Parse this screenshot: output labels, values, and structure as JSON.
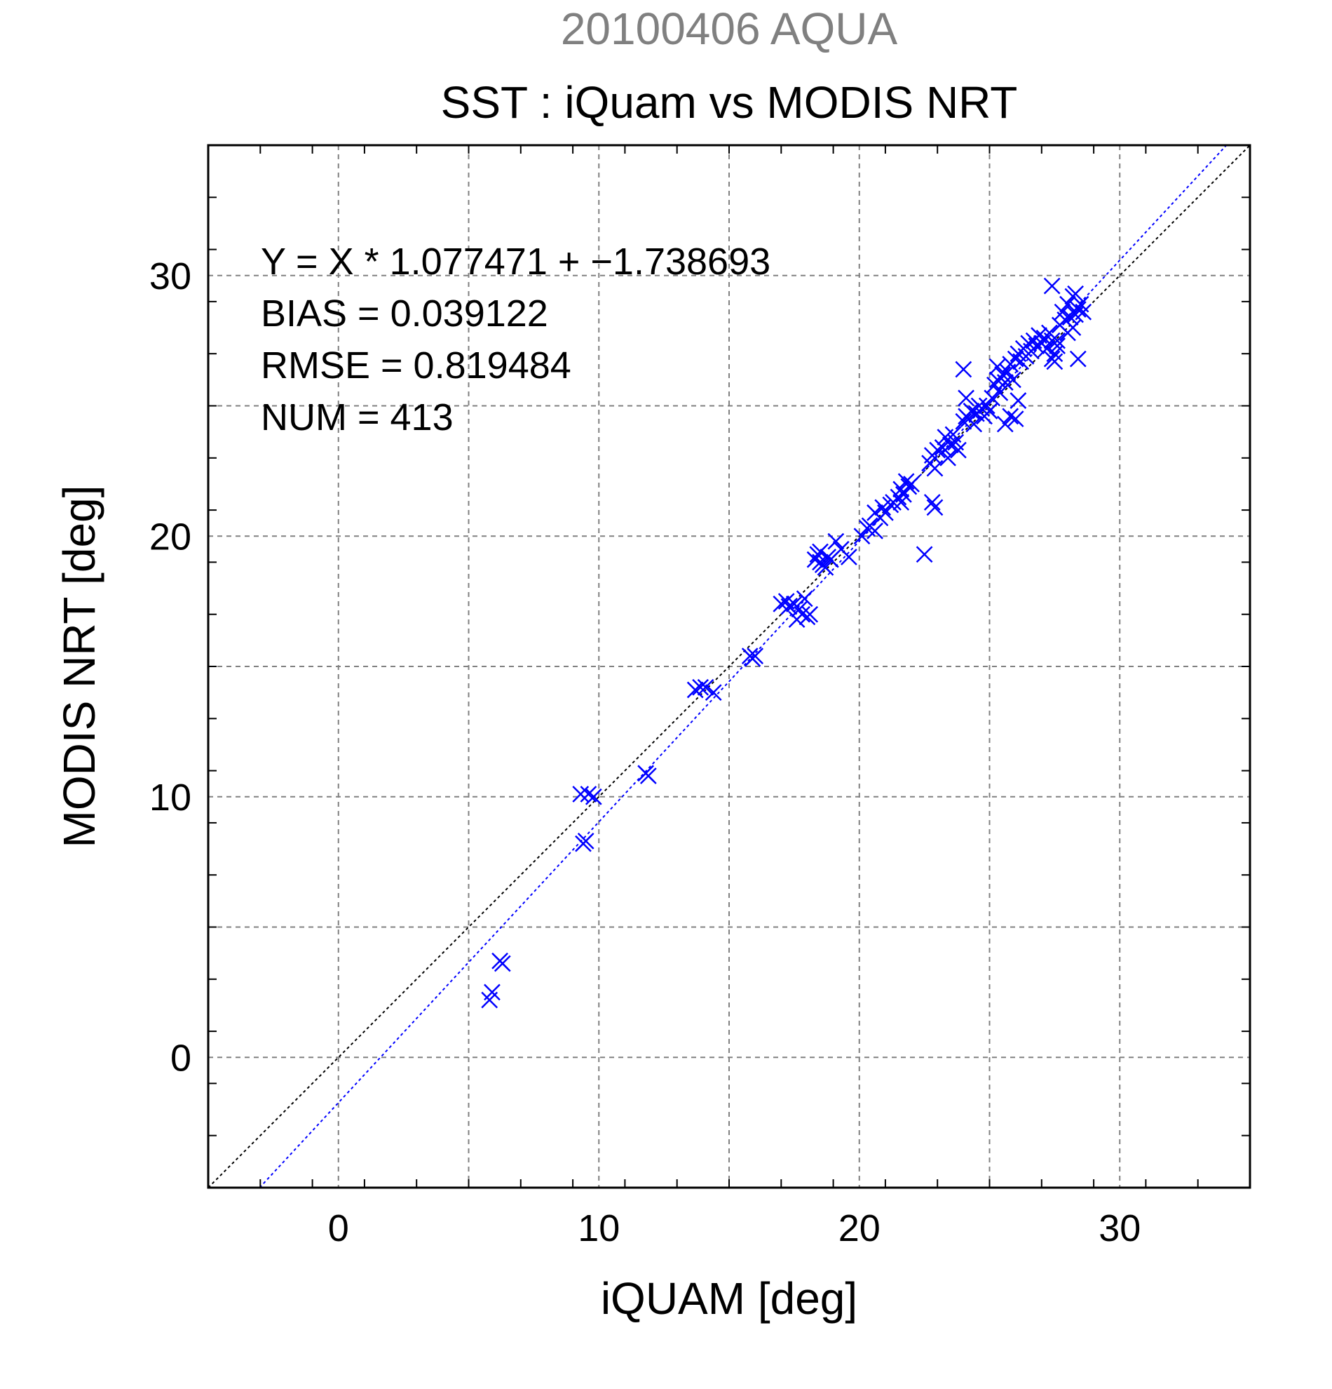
{
  "chart_data": {
    "type": "scatter",
    "title": "SST : iQuam vs MODIS NRT",
    "supertitle": "20100406 AQUA",
    "xlabel": "iQUAM [deg]",
    "ylabel": "MODIS NRT [deg]",
    "xlim": [
      -5,
      35
    ],
    "ylim": [
      -5,
      35
    ],
    "xticks": [
      0,
      10,
      20,
      30
    ],
    "yticks": [
      0,
      10,
      20,
      30
    ],
    "xtick_labels": [
      "0",
      "10",
      "20",
      "30"
    ],
    "ytick_labels": [
      "0",
      "10",
      "20",
      "30"
    ],
    "grid": true,
    "marker": "x",
    "colors": {
      "points": "#0000ff",
      "fit_line": "#0000ff",
      "identity_line": "#000000",
      "supertitle": "#808080",
      "grid": "#808080",
      "text": "#000000"
    },
    "stats": [
      "Y = X * 1.077471 + −1.738693",
      "BIAS = 0.039122",
      "RMSE = 0.819484",
      "NUM = 413"
    ],
    "fit": {
      "slope": 1.077471,
      "intercept": -1.738693
    },
    "series": [
      {
        "points": [
          [
            5.8,
            2.2
          ],
          [
            5.9,
            2.5
          ],
          [
            6.3,
            3.6
          ],
          [
            6.2,
            3.7
          ],
          [
            9.3,
            10.1
          ],
          [
            9.6,
            10.1
          ],
          [
            9.8,
            10.0
          ],
          [
            9.4,
            8.2
          ],
          [
            9.5,
            8.3
          ],
          [
            11.8,
            10.9
          ],
          [
            11.9,
            10.8
          ],
          [
            13.7,
            14.1
          ],
          [
            13.9,
            14.2
          ],
          [
            14.1,
            14.2
          ],
          [
            14.4,
            14.0
          ],
          [
            15.8,
            15.4
          ],
          [
            15.9,
            15.3
          ],
          [
            16.0,
            15.4
          ],
          [
            17.0,
            17.4
          ],
          [
            17.2,
            17.5
          ],
          [
            17.3,
            17.3
          ],
          [
            17.5,
            17.4
          ],
          [
            17.6,
            16.8
          ],
          [
            17.7,
            17.2
          ],
          [
            17.8,
            17.0
          ],
          [
            18.0,
            16.9
          ],
          [
            18.1,
            17.0
          ],
          [
            17.9,
            17.6
          ],
          [
            18.3,
            19.1
          ],
          [
            18.4,
            19.3
          ],
          [
            18.5,
            19.0
          ],
          [
            18.6,
            18.9
          ],
          [
            18.7,
            18.8
          ],
          [
            18.8,
            19.2
          ],
          [
            18.9,
            19.1
          ],
          [
            19.1,
            19.8
          ],
          [
            19.3,
            19.5
          ],
          [
            19.6,
            19.2
          ],
          [
            18.5,
            19.4
          ],
          [
            20.1,
            20.0
          ],
          [
            20.3,
            20.3
          ],
          [
            20.4,
            20.4
          ],
          [
            20.6,
            20.2
          ],
          [
            20.6,
            20.9
          ],
          [
            20.8,
            20.7
          ],
          [
            20.9,
            21.1
          ],
          [
            21.0,
            20.9
          ],
          [
            21.2,
            21.2
          ],
          [
            21.3,
            21.3
          ],
          [
            21.5,
            21.5
          ],
          [
            21.6,
            21.8
          ],
          [
            21.7,
            21.6
          ],
          [
            21.8,
            22.1
          ],
          [
            21.9,
            21.9
          ],
          [
            22.0,
            22.0
          ],
          [
            21.6,
            21.3
          ],
          [
            22.5,
            19.3
          ],
          [
            22.7,
            22.8
          ],
          [
            22.8,
            23.1
          ],
          [
            22.9,
            22.6
          ],
          [
            23.0,
            23.3
          ],
          [
            22.8,
            21.3
          ],
          [
            22.9,
            21.1
          ],
          [
            23.2,
            23.4
          ],
          [
            23.3,
            23.8
          ],
          [
            23.4,
            23.0
          ],
          [
            23.5,
            23.5
          ],
          [
            23.6,
            23.9
          ],
          [
            23.7,
            23.6
          ],
          [
            23.8,
            23.3
          ],
          [
            24.0,
            24.4
          ],
          [
            24.1,
            24.6
          ],
          [
            24.2,
            24.5
          ],
          [
            24.3,
            24.8
          ],
          [
            24.5,
            24.7
          ],
          [
            24.6,
            25.0
          ],
          [
            24.7,
            24.9
          ],
          [
            24.8,
            24.6
          ],
          [
            24.9,
            25.0
          ],
          [
            25.0,
            24.8
          ],
          [
            24.0,
            26.4
          ],
          [
            24.1,
            25.3
          ],
          [
            24.4,
            24.3
          ],
          [
            25.1,
            25.3
          ],
          [
            25.2,
            25.8
          ],
          [
            25.3,
            26.0
          ],
          [
            25.4,
            25.5
          ],
          [
            25.5,
            26.2
          ],
          [
            25.6,
            25.9
          ],
          [
            25.7,
            26.3
          ],
          [
            25.8,
            26.6
          ],
          [
            25.9,
            26.0
          ],
          [
            25.3,
            26.5
          ],
          [
            25.6,
            24.3
          ],
          [
            25.8,
            24.6
          ],
          [
            26.0,
            24.5
          ],
          [
            26.1,
            25.2
          ],
          [
            26.0,
            26.8
          ],
          [
            26.1,
            27.0
          ],
          [
            26.2,
            26.7
          ],
          [
            26.3,
            27.2
          ],
          [
            26.4,
            26.9
          ],
          [
            26.5,
            27.4
          ],
          [
            26.6,
            27.1
          ],
          [
            26.7,
            27.5
          ],
          [
            26.8,
            27.3
          ],
          [
            26.9,
            27.7
          ],
          [
            27.0,
            27.4
          ],
          [
            27.1,
            27.6
          ],
          [
            27.2,
            27.2
          ],
          [
            27.3,
            27.8
          ],
          [
            27.4,
            27.5
          ],
          [
            27.5,
            27.0
          ],
          [
            27.6,
            27.3
          ],
          [
            27.4,
            26.8
          ],
          [
            27.5,
            26.7
          ],
          [
            27.6,
            27.5
          ],
          [
            27.4,
            29.6
          ],
          [
            27.7,
            28.1
          ],
          [
            27.8,
            28.6
          ],
          [
            27.9,
            28.3
          ],
          [
            28.0,
            28.9
          ],
          [
            28.1,
            28.4
          ],
          [
            28.2,
            29.2
          ],
          [
            28.3,
            29.3
          ],
          [
            28.4,
            28.7
          ],
          [
            28.5,
            28.9
          ],
          [
            28.2,
            28.0
          ],
          [
            28.4,
            26.8
          ],
          [
            28.6,
            28.6
          ],
          [
            28.0,
            27.8
          ],
          [
            28.3,
            28.5
          ]
        ]
      }
    ]
  }
}
